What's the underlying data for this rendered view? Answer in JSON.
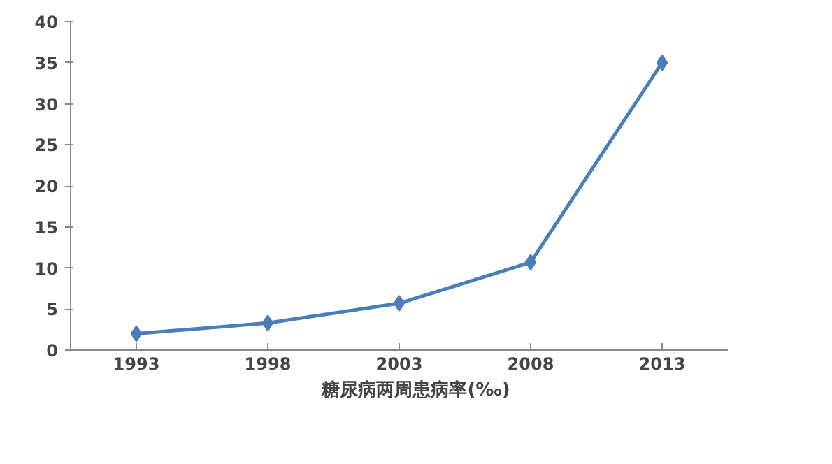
{
  "chart_data": {
    "type": "line",
    "categories": [
      "1993",
      "1998",
      "2003",
      "2008",
      "2013"
    ],
    "series": [
      {
        "name": "糖尿病两周患病率(‰)",
        "color": "#4a7ebb",
        "values": [
          2.0,
          3.3,
          5.7,
          10.7,
          35.0
        ]
      }
    ],
    "ylim": [
      0,
      40
    ],
    "yticks": [
      0,
      5,
      10,
      15,
      20,
      25,
      30,
      35,
      40
    ],
    "grid": false,
    "legend": "bottom",
    "marker": "diamond",
    "line_style": "solid"
  }
}
